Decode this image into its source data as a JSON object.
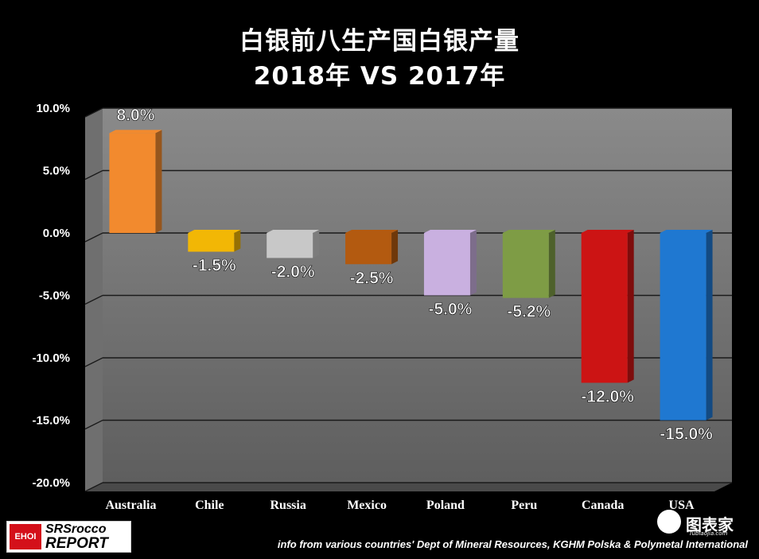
{
  "title_line1": "白银前八生产国白银产量",
  "title_line2": "2018年 VS 2017年",
  "source": "info from various countries' Dept of Mineral Resources, KGHM Polska & Polymetal International",
  "logo": {
    "badge": "EHOI",
    "line1": "SRSrocco",
    "line2": "REPORT"
  },
  "watermark": {
    "text": "图表家",
    "sub": "Tubiaojia.com"
  },
  "chart_data": {
    "type": "bar",
    "categories": [
      "Australia",
      "Chile",
      "Russia",
      "Mexico",
      "Poland",
      "Peru",
      "Canada",
      "USA"
    ],
    "values": [
      8.0,
      -1.5,
      -2.0,
      -2.5,
      -5.0,
      -5.2,
      -12.0,
      -15.0
    ],
    "data_labels": [
      "8.0%",
      "-1.5%",
      "-2.0%",
      "-2.5%",
      "-5.0%",
      "-5.2%",
      "-12.0%",
      "-15.0%"
    ],
    "colors": [
      "#f28a2e",
      "#f2b705",
      "#c8c8c8",
      "#b35a10",
      "#c9b0e0",
      "#7e9c45",
      "#cc1414",
      "#1f78d1"
    ],
    "ylim": [
      -20,
      10
    ],
    "yticks": [
      10,
      5,
      0,
      -5,
      -10,
      -15,
      -20
    ],
    "ytick_labels": [
      "10.0%",
      "5.0%",
      "0.0%",
      "-5.0%",
      "-10.0%",
      "-15.0%",
      "-20.0%"
    ],
    "grid": true,
    "legend": "none",
    "xlabel": "",
    "ylabel": ""
  }
}
